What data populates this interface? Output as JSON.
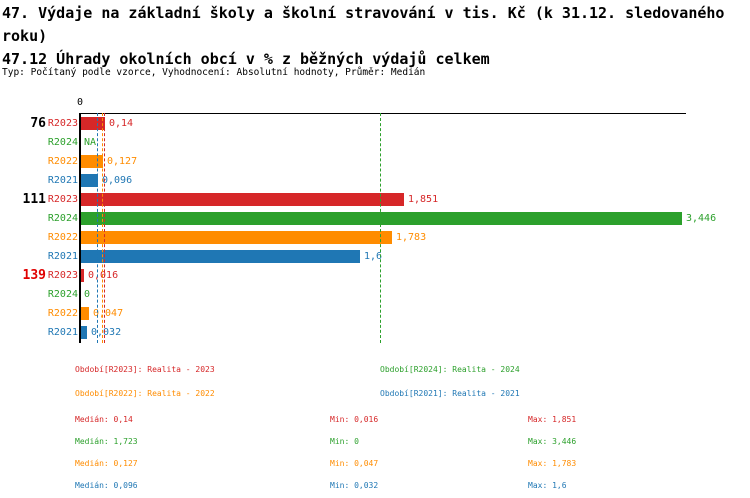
{
  "title_line1": "47. Výdaje na základní školy a školní stravování v tis. Kč (k 31.12. sledovaného roku)",
  "title_line2": "47.12 Úhrady okolních obcí v % z běžných výdajů celkem",
  "meta_line": "Typ: Počítaný podle vzorce, Vyhodnocení: Absolutní hodnoty, Průměr: Medián",
  "colors": {
    "R2023": "#d62728",
    "R2024": "#2ca02c",
    "R2022": "#ff8c00",
    "R2021": "#1f77b4",
    "axis": "#000000",
    "group_label_default": "#000000",
    "group_label_highlight": "#e00000"
  },
  "chart_data": {
    "type": "bar",
    "orientation": "horizontal",
    "value_axis": {
      "zero_label": "0",
      "min": 0,
      "max": 3.475,
      "gridlines": false
    },
    "series_order": [
      "R2023",
      "R2024",
      "R2022",
      "R2021"
    ],
    "series_names": {
      "R2023": "Realita - 2023",
      "R2024": "Realita - 2024",
      "R2022": "Realita - 2022",
      "R2021": "Realita - 2021"
    },
    "groups": [
      {
        "id": "76",
        "highlight": false,
        "rows": [
          {
            "series": "R2023",
            "value": 0.14,
            "display": "0,14"
          },
          {
            "series": "R2024",
            "value": null,
            "display": "NA"
          },
          {
            "series": "R2022",
            "value": 0.127,
            "display": "0,127"
          },
          {
            "series": "R2021",
            "value": 0.096,
            "display": "0,096"
          }
        ]
      },
      {
        "id": "111",
        "highlight": false,
        "rows": [
          {
            "series": "R2023",
            "value": 1.851,
            "display": "1,851"
          },
          {
            "series": "R2024",
            "value": 3.446,
            "display": "3,446"
          },
          {
            "series": "R2022",
            "value": 1.783,
            "display": "1,783"
          },
          {
            "series": "R2021",
            "value": 1.6,
            "display": "1,6"
          }
        ]
      },
      {
        "id": "139",
        "highlight": true,
        "rows": [
          {
            "series": "R2023",
            "value": 0.016,
            "display": "0,016"
          },
          {
            "series": "R2024",
            "value": 0,
            "display": "0"
          },
          {
            "series": "R2022",
            "value": 0.047,
            "display": "0,047"
          },
          {
            "series": "R2021",
            "value": 0.032,
            "display": "0,032"
          }
        ]
      }
    ],
    "median_lines": [
      {
        "series": "R2021",
        "value": 0.096
      },
      {
        "series": "R2022",
        "value": 0.127
      },
      {
        "series": "R2023",
        "value": 0.14
      },
      {
        "series": "R2024",
        "value": 1.723
      }
    ]
  },
  "legend": [
    {
      "series": "R2023",
      "label": "Období[R2023]: Realita - 2023"
    },
    {
      "series": "R2024",
      "label": "Období[R2024]: Realita - 2024"
    },
    {
      "series": "R2022",
      "label": "Období[R2022]: Realita - 2022"
    },
    {
      "series": "R2021",
      "label": "Období[R2021]: Realita - 2021"
    }
  ],
  "stats": [
    {
      "series": "R2023",
      "median": "Medián: 0,14",
      "min": "Min: 0,016",
      "max": "Max: 1,851"
    },
    {
      "series": "R2024",
      "median": "Medián: 1,723",
      "min": "Min: 0",
      "max": "Max: 3,446"
    },
    {
      "series": "R2022",
      "median": "Medián: 0,127",
      "min": "Min: 0,047",
      "max": "Max: 1,783"
    },
    {
      "series": "R2021",
      "median": "Medián: 0,096",
      "min": "Min: 0,032",
      "max": "Max: 1,6"
    }
  ]
}
